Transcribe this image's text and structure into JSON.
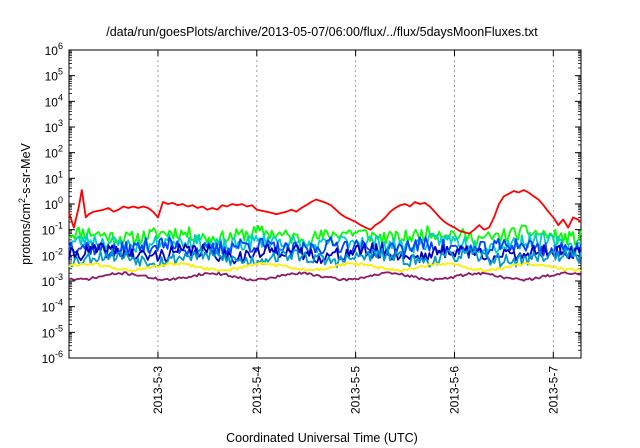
{
  "chart_data": {
    "type": "line",
    "title": "/data/run/goesPlots/archive/2013-05-07/06:00/flux/../flux/5daysMoonFluxes.txt",
    "xlabel": "Coordinated Universal Time (UTC)",
    "ylabel": {
      "pre": "protons/cm",
      "sup": "2",
      "post": "-s-sr-MeV"
    },
    "yscale": "log",
    "ylim_exp": [
      -6,
      6
    ],
    "y_tick_exponents": [
      -6,
      -5,
      -4,
      -3,
      -2,
      -1,
      0,
      1,
      2,
      3,
      4,
      5,
      6
    ],
    "y_tick_base": "10",
    "xlim": [
      2.1,
      7.28
    ],
    "x_ticks": [
      {
        "value": 3,
        "label": "2013-5-3"
      },
      {
        "value": 4,
        "label": "2013-5-4"
      },
      {
        "value": 5,
        "label": "2013-5-5"
      },
      {
        "value": 6,
        "label": "2013-5-6"
      },
      {
        "value": 7,
        "label": "2013-5-7"
      }
    ],
    "grid": "x-only-dashed",
    "legend": "none",
    "series": [
      {
        "color": "#ff0000",
        "points": [
          [
            2.1,
            0.45
          ],
          [
            2.15,
            0.12
          ],
          [
            2.2,
            0.8
          ],
          [
            2.23,
            3.5
          ],
          [
            2.27,
            0.3
          ],
          [
            2.3,
            0.4
          ],
          [
            2.35,
            0.5
          ],
          [
            2.4,
            0.55
          ],
          [
            2.45,
            0.6
          ],
          [
            2.5,
            0.7
          ],
          [
            2.55,
            0.5
          ],
          [
            2.6,
            0.6
          ],
          [
            2.65,
            0.8
          ],
          [
            2.7,
            0.7
          ],
          [
            2.75,
            0.8
          ],
          [
            2.8,
            0.7
          ],
          [
            2.85,
            0.8
          ],
          [
            2.9,
            0.7
          ],
          [
            2.95,
            0.5
          ],
          [
            3.0,
            0.3
          ],
          [
            3.05,
            1.2
          ],
          [
            3.1,
            1.0
          ],
          [
            3.15,
            1.1
          ],
          [
            3.2,
            0.9
          ],
          [
            3.25,
            1.0
          ],
          [
            3.3,
            0.8
          ],
          [
            3.35,
            0.9
          ],
          [
            3.4,
            0.7
          ],
          [
            3.45,
            0.8
          ],
          [
            3.5,
            0.6
          ],
          [
            3.55,
            0.7
          ],
          [
            3.6,
            0.6
          ],
          [
            3.65,
            0.9
          ],
          [
            3.7,
            0.8
          ],
          [
            3.75,
            1.0
          ],
          [
            3.8,
            0.9
          ],
          [
            3.85,
            1.0
          ],
          [
            3.9,
            0.8
          ],
          [
            3.95,
            0.9
          ],
          [
            4.0,
            0.6
          ],
          [
            4.05,
            0.55
          ],
          [
            4.1,
            0.5
          ],
          [
            4.15,
            0.45
          ],
          [
            4.2,
            0.4
          ],
          [
            4.25,
            0.45
          ],
          [
            4.3,
            0.5
          ],
          [
            4.35,
            0.6
          ],
          [
            4.4,
            0.5
          ],
          [
            4.45,
            0.7
          ],
          [
            4.5,
            0.9
          ],
          [
            4.55,
            1.2
          ],
          [
            4.6,
            1.5
          ],
          [
            4.65,
            1.3
          ],
          [
            4.7,
            1.1
          ],
          [
            4.75,
            0.9
          ],
          [
            4.8,
            0.6
          ],
          [
            4.85,
            0.4
          ],
          [
            4.9,
            0.3
          ],
          [
            4.95,
            0.25
          ],
          [
            5.0,
            0.2
          ],
          [
            5.05,
            0.15
          ],
          [
            5.1,
            0.12
          ],
          [
            5.15,
            0.1
          ],
          [
            5.2,
            0.15
          ],
          [
            5.25,
            0.2
          ],
          [
            5.3,
            0.3
          ],
          [
            5.35,
            0.5
          ],
          [
            5.4,
            0.7
          ],
          [
            5.45,
            0.9
          ],
          [
            5.5,
            1.0
          ],
          [
            5.55,
            0.8
          ],
          [
            5.6,
            1.2
          ],
          [
            5.65,
            1.0
          ],
          [
            5.7,
            1.1
          ],
          [
            5.75,
            0.8
          ],
          [
            5.8,
            0.5
          ],
          [
            5.85,
            0.3
          ],
          [
            5.9,
            0.2
          ],
          [
            5.95,
            0.15
          ],
          [
            6.0,
            0.12
          ],
          [
            6.05,
            0.09
          ],
          [
            6.1,
            0.08
          ],
          [
            6.15,
            0.07
          ],
          [
            6.2,
            0.1
          ],
          [
            6.25,
            0.15
          ],
          [
            6.3,
            0.1
          ],
          [
            6.35,
            0.12
          ],
          [
            6.4,
            0.3
          ],
          [
            6.45,
            1.0
          ],
          [
            6.5,
            2.0
          ],
          [
            6.55,
            2.5
          ],
          [
            6.6,
            3.2
          ],
          [
            6.65,
            2.8
          ],
          [
            6.7,
            3.5
          ],
          [
            6.75,
            2.8
          ],
          [
            6.8,
            2.0
          ],
          [
            6.85,
            1.5
          ],
          [
            6.9,
            0.9
          ],
          [
            6.95,
            0.5
          ],
          [
            7.0,
            0.3
          ],
          [
            7.05,
            0.15
          ],
          [
            7.1,
            0.25
          ],
          [
            7.15,
            0.12
          ],
          [
            7.2,
            0.3
          ],
          [
            7.25,
            0.25
          ],
          [
            7.28,
            0.2
          ]
        ]
      },
      {
        "color": "#00ff00",
        "base": 0.06,
        "amp": 0.28,
        "seed": 11
      },
      {
        "color": "#00cccc",
        "base": 0.03,
        "amp": 0.3,
        "seed": 23
      },
      {
        "color": "#0044ff",
        "base": 0.02,
        "amp": 0.32,
        "seed": 37
      },
      {
        "color": "#0000bb",
        "base": 0.012,
        "amp": 0.28,
        "seed": 41
      },
      {
        "color": "#0099cc",
        "base": 0.008,
        "amp": 0.26,
        "seed": 53
      },
      {
        "color": "#ffee00",
        "base": 0.0035,
        "amp": 0.06,
        "seed": 61
      },
      {
        "color": "#8b1a6b",
        "base": 0.0015,
        "amp": 0.05,
        "seed": 71
      }
    ]
  }
}
